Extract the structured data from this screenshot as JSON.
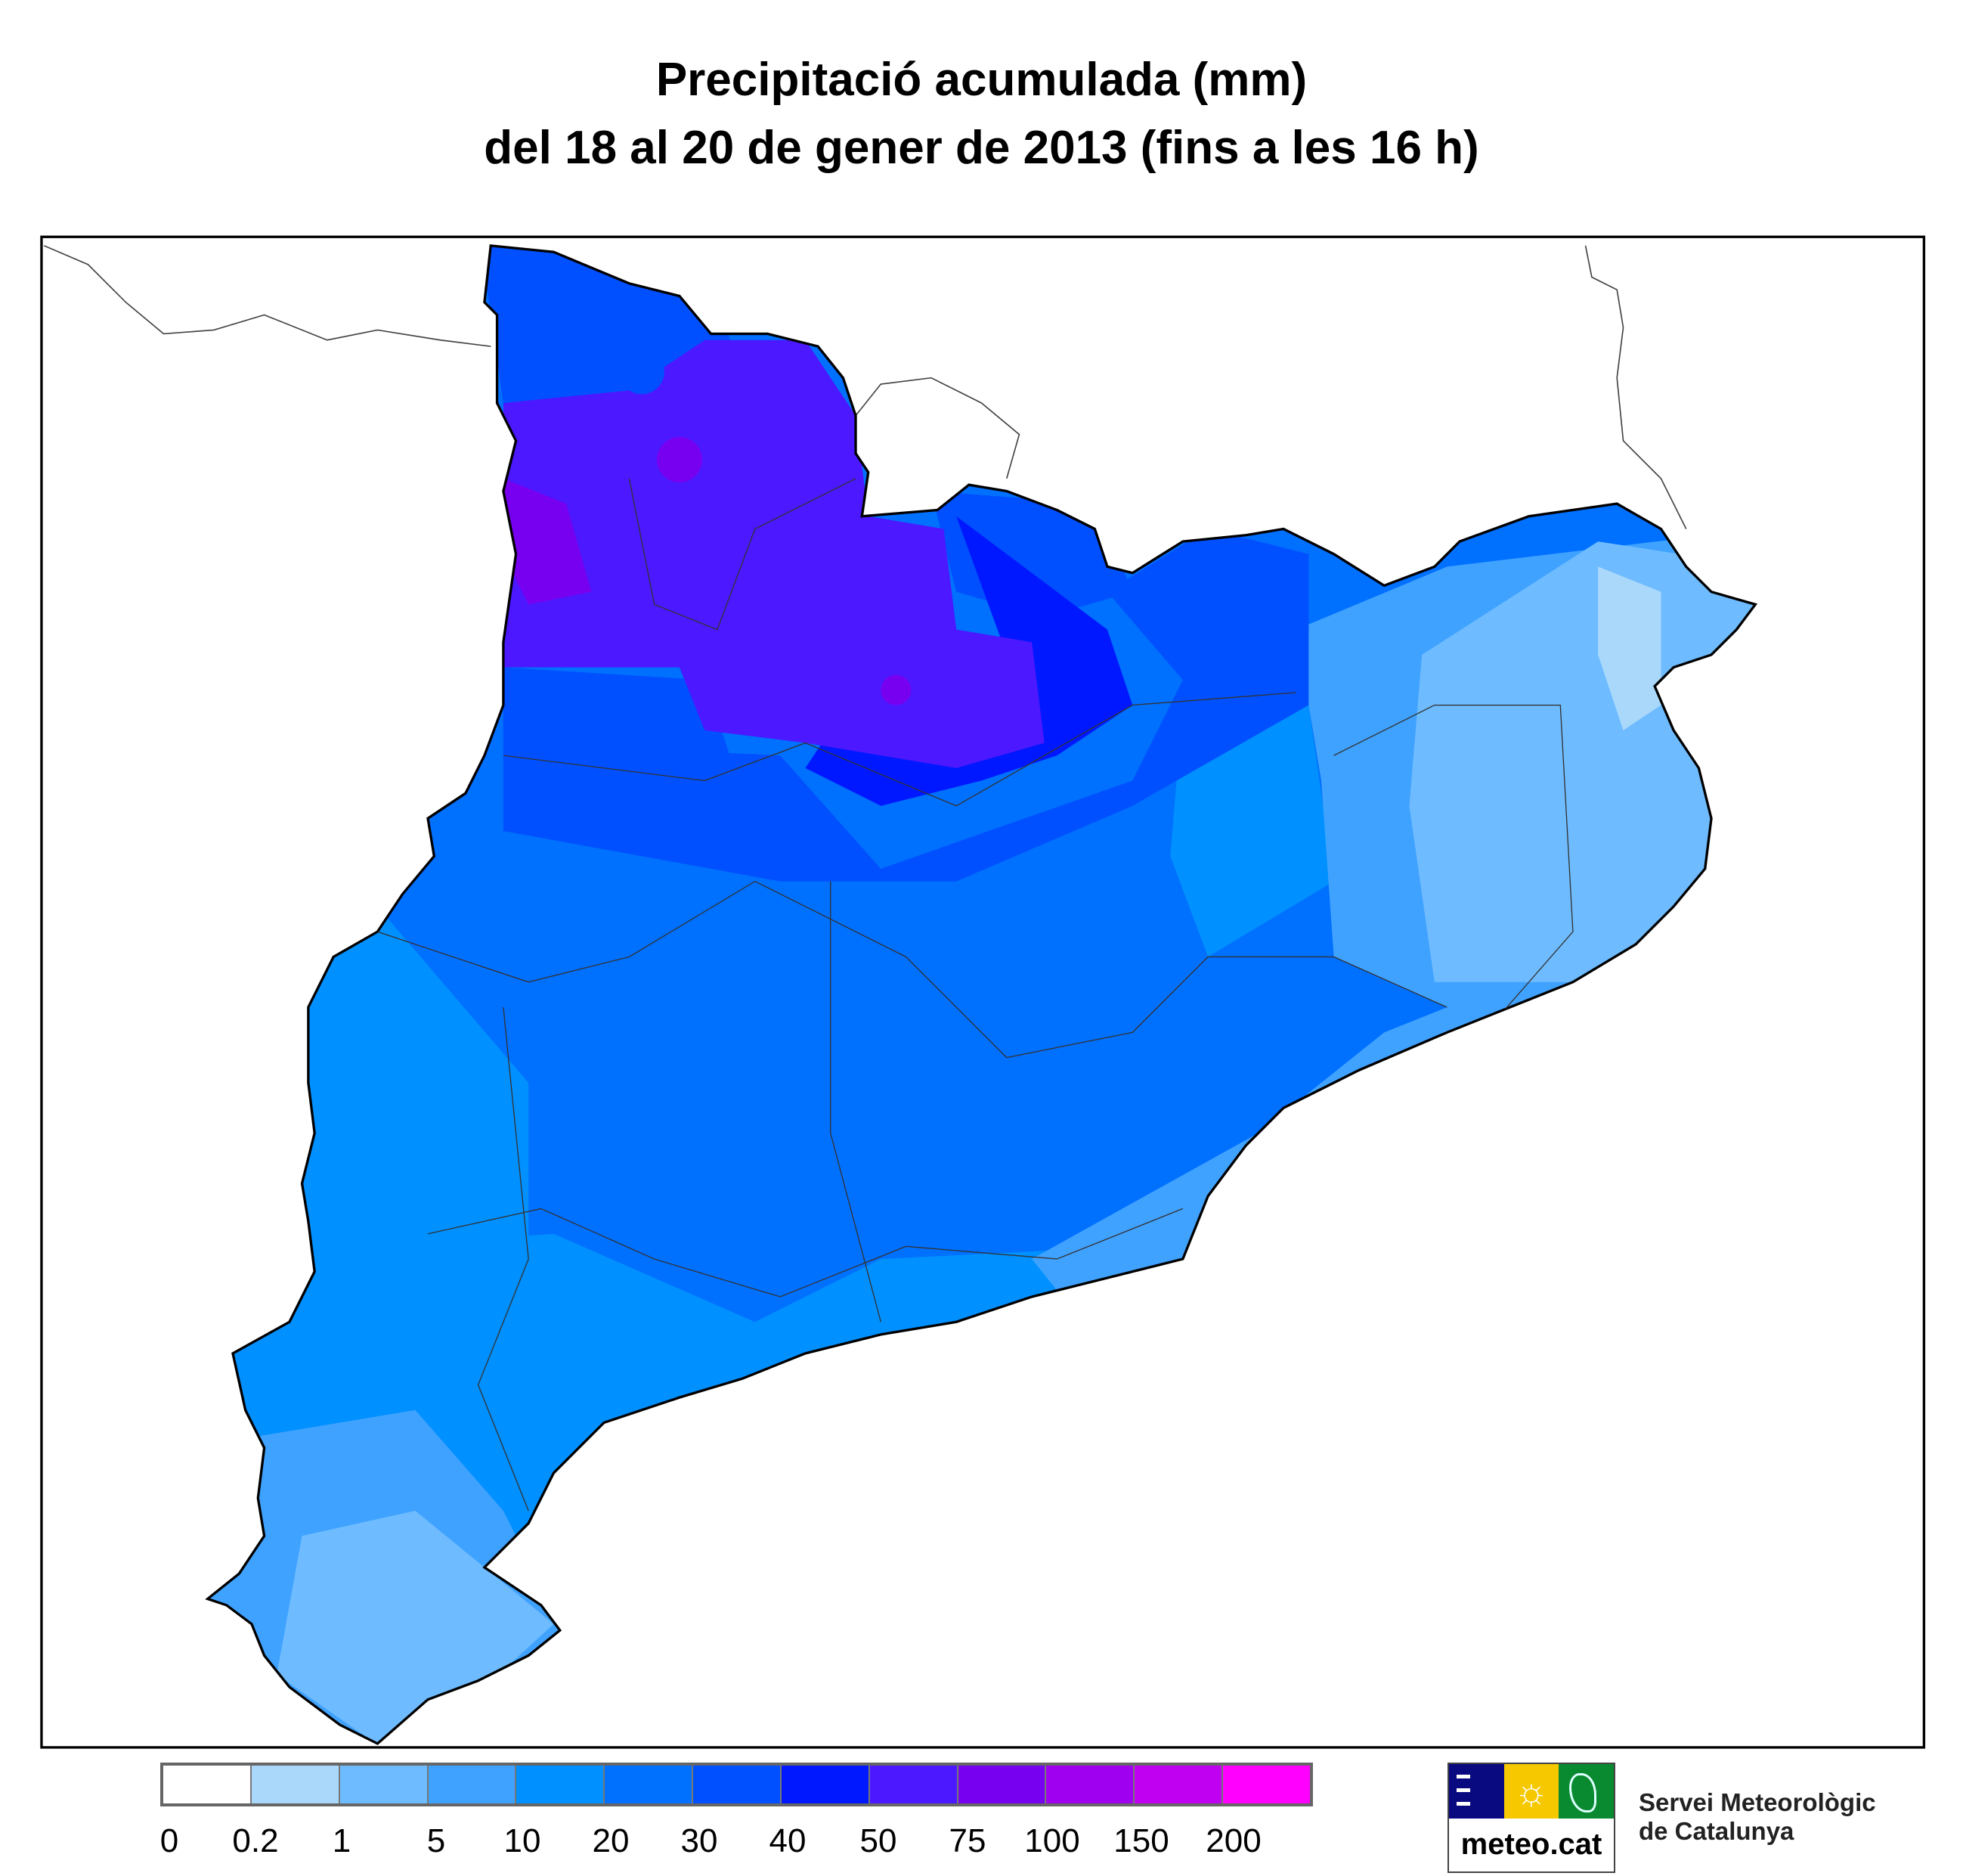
{
  "title": {
    "line1": "Precipitació acumulada (mm)",
    "line2": "del 18 al 20 de gener de 2013 (fins a les 16 h)"
  },
  "legend": {
    "labels": [
      "0",
      "0.2",
      "1",
      "5",
      "10",
      "20",
      "30",
      "40",
      "50",
      "75",
      "100",
      "150",
      "200"
    ],
    "colors": [
      "#ffffff",
      "#aad8fa",
      "#6ebcff",
      "#40a2ff",
      "#0090ff",
      "#0070ff",
      "#0050ff",
      "#0018ff",
      "#4c18ff",
      "#7800f0",
      "#a000f0",
      "#c000f0",
      "#ff00ff"
    ]
  },
  "logo": {
    "text": "meteo.cat",
    "org_line1": "Servei Meteorològic",
    "org_line2": "de Catalunya",
    "colors": [
      "#0a0a80",
      "#f5c800",
      "#0a8a30"
    ]
  }
}
